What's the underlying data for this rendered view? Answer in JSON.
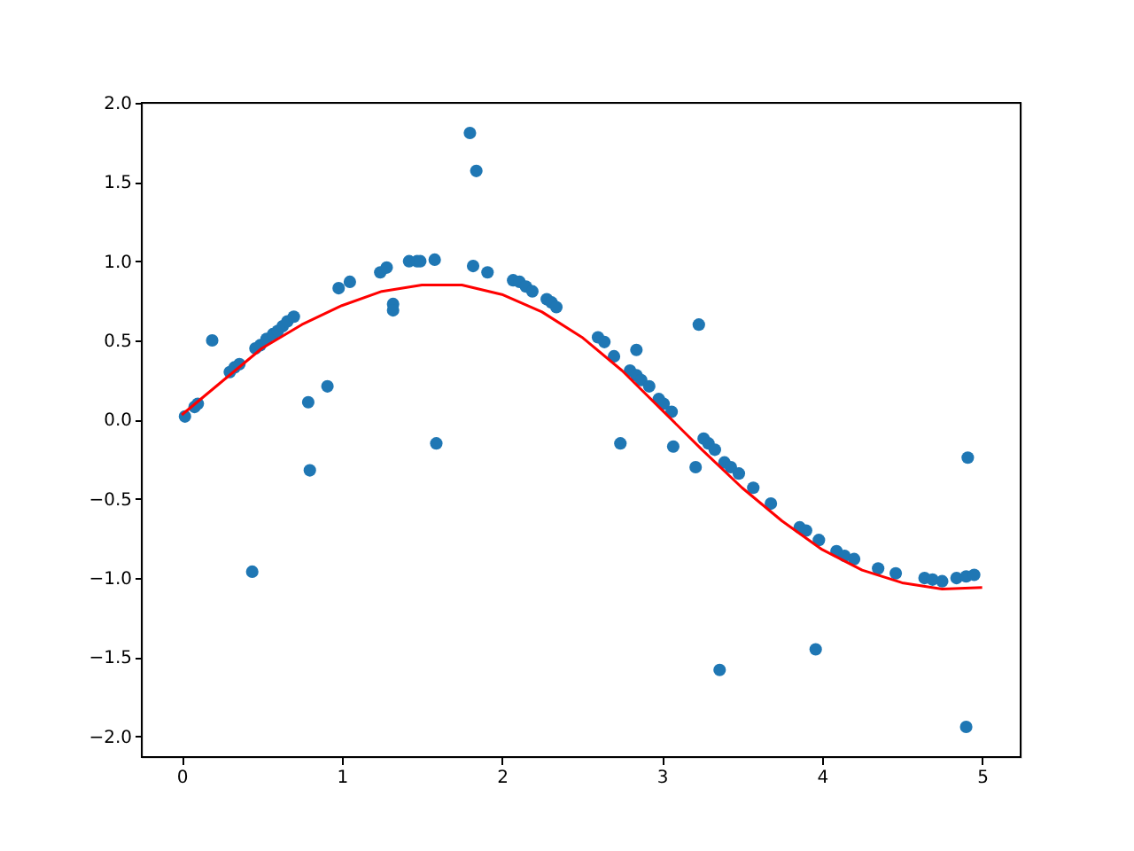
{
  "chart_data": {
    "type": "scatter",
    "xlim": [
      -0.25,
      5.24
    ],
    "ylim": [
      -2.13,
      2.0
    ],
    "xticks": [
      0,
      1,
      2,
      3,
      4,
      5
    ],
    "yticks": [
      {
        "value": -2,
        "label": "−2.0"
      },
      {
        "value": -1.5,
        "label": "−1.5"
      },
      {
        "value": -1,
        "label": "−1.0"
      },
      {
        "value": -0.5,
        "label": "−0.5"
      },
      {
        "value": 0,
        "label": "0.0"
      },
      {
        "value": 0.5,
        "label": "0.5"
      },
      {
        "value": 1,
        "label": "1.0"
      },
      {
        "value": 1.5,
        "label": "1.5"
      },
      {
        "value": 2,
        "label": "2.0"
      }
    ],
    "grid": false,
    "marker": "circle",
    "series": [
      {
        "color": "#1f77b4",
        "x": [
          0.02,
          0.08,
          0.1,
          0.19,
          0.3,
          0.33,
          0.36,
          0.44,
          0.46,
          0.49,
          0.53,
          0.57,
          0.6,
          0.63,
          0.66,
          0.7,
          0.79,
          0.8,
          0.91,
          0.98,
          1.05,
          1.24,
          1.28,
          1.32,
          1.32,
          1.42,
          1.47,
          1.49,
          1.58,
          1.59,
          1.8,
          1.84,
          1.82,
          1.91,
          2.07,
          2.11,
          2.15,
          2.19,
          2.28,
          2.31,
          2.34,
          2.6,
          2.64,
          2.7,
          2.74,
          2.8,
          2.84,
          2.84,
          2.87,
          2.92,
          2.98,
          3.01,
          3.06,
          3.07,
          3.21,
          3.23,
          3.26,
          3.29,
          3.33,
          3.36,
          3.39,
          3.43,
          3.48,
          3.57,
          3.68,
          3.86,
          3.9,
          3.96,
          3.98,
          4.09,
          4.14,
          4.2,
          4.35,
          4.46,
          4.64,
          4.69,
          4.75,
          4.84,
          4.9,
          4.91,
          4.9,
          4.95
        ],
        "values": [
          0.02,
          0.08,
          0.1,
          0.5,
          0.3,
          0.33,
          0.35,
          -0.96,
          0.45,
          0.47,
          0.51,
          0.54,
          0.56,
          0.59,
          0.62,
          0.65,
          0.11,
          -0.32,
          0.21,
          0.83,
          0.87,
          0.93,
          0.96,
          0.73,
          0.69,
          1.0,
          1.0,
          1.0,
          1.01,
          -0.15,
          1.81,
          1.57,
          0.97,
          0.93,
          0.88,
          0.87,
          0.84,
          0.81,
          0.76,
          0.74,
          0.71,
          0.52,
          0.49,
          0.4,
          -0.15,
          0.31,
          0.44,
          0.28,
          0.25,
          0.21,
          0.13,
          0.1,
          0.05,
          -0.17,
          -0.3,
          0.6,
          -0.12,
          -0.15,
          -0.19,
          -1.58,
          -0.27,
          -0.3,
          -0.34,
          -0.43,
          -0.53,
          -0.68,
          -0.7,
          -1.45,
          -0.76,
          -0.83,
          -0.86,
          -0.88,
          -0.94,
          -0.97,
          -1.0,
          -1.01,
          -1.02,
          -1.0,
          -0.99,
          -0.24,
          -1.94,
          -0.98
        ]
      },
      {
        "type": "line",
        "color": "#ff0000",
        "marker": "none",
        "line_style": "solid",
        "x": [
          0,
          0.25,
          0.5,
          0.75,
          1.0,
          1.25,
          1.5,
          1.75,
          2.0,
          2.25,
          2.5,
          2.75,
          3.0,
          3.25,
          3.5,
          3.75,
          4.0,
          4.25,
          4.5,
          4.75,
          5.0
        ],
        "values": [
          0.03,
          0.24,
          0.45,
          0.6,
          0.72,
          0.81,
          0.85,
          0.85,
          0.79,
          0.68,
          0.52,
          0.31,
          0.06,
          -0.19,
          -0.43,
          -0.64,
          -0.82,
          -0.95,
          -1.03,
          -1.07,
          -1.06
        ]
      }
    ]
  }
}
